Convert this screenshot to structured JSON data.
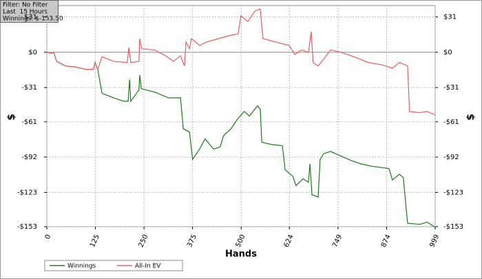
{
  "chart_data": {
    "type": "line",
    "info": [
      "Filter: No Filter",
      "Last  15 Hours",
      "Winnings: $-153.50"
    ],
    "xlabel": "Hands",
    "ylabel": "$",
    "y2label": "$",
    "xlim": [
      0,
      999
    ],
    "xticks": [
      0,
      125,
      250,
      375,
      500,
      624,
      749,
      874,
      999
    ],
    "ylim": [
      -153,
      41
    ],
    "yticks": [
      {
        "value": -153,
        "label": "-$153"
      },
      {
        "value": -123,
        "label": "-$123"
      },
      {
        "value": -92,
        "label": "-$92"
      },
      {
        "value": -61,
        "label": "-$61"
      },
      {
        "value": -31,
        "label": "-$31"
      },
      {
        "value": 0,
        "label": "$0"
      },
      {
        "value": 31,
        "label": "$31"
      }
    ],
    "y2lim": [
      -153,
      41
    ],
    "y2ticks": [
      {
        "value": -153,
        "label": "-$153"
      },
      {
        "value": -123,
        "label": "-$123"
      },
      {
        "value": -92,
        "label": "-$92"
      },
      {
        "value": -61,
        "label": "-$61"
      },
      {
        "value": -31,
        "label": "-$31"
      },
      {
        "value": 0,
        "label": "$0"
      },
      {
        "value": 31,
        "label": "$31"
      }
    ],
    "grid": true,
    "series": [
      {
        "name": "Winnings",
        "color": "#1a7a1a",
        "x": [
          0,
          11,
          18,
          25,
          48,
          74,
          101,
          120,
          124,
          131,
          142,
          172,
          198,
          209,
          213,
          216,
          237,
          239,
          243,
          278,
          313,
          344,
          351,
          367,
          375,
          393,
          407,
          429,
          446,
          455,
          474,
          492,
          508,
          521,
          542,
          549,
          553,
          579,
          606,
          613,
          633,
          641,
          659,
          673,
          677,
          682,
          698,
          703,
          712,
          730,
          756,
          783,
          809,
          836,
          880,
          889,
          907,
          917,
          928,
          960,
          978,
          999
        ],
        "values": [
          0,
          -1,
          0,
          -8,
          -12,
          -13,
          -15,
          -15,
          -9,
          -15,
          -36,
          -40,
          -43,
          -43,
          -24,
          -43,
          -33,
          -20,
          -32,
          -35,
          -40,
          -40,
          -67,
          -70,
          -94,
          -85,
          -76,
          -85,
          -83,
          -73,
          -67,
          -58,
          -52,
          -56,
          -47,
          -50,
          -79,
          -81,
          -82,
          -103,
          -109,
          -117,
          -111,
          -114,
          -98,
          -125,
          -127,
          -94,
          -89,
          -87,
          -91,
          -95,
          -98,
          -100,
          -102,
          -112,
          -107,
          -110,
          -150,
          -151,
          -149,
          -153.5
        ]
      },
      {
        "name": "All-In EV",
        "color": "#e06060",
        "x": [
          0,
          11,
          18,
          25,
          48,
          74,
          101,
          120,
          124,
          131,
          142,
          172,
          207,
          211,
          216,
          237,
          239,
          244,
          278,
          305,
          326,
          344,
          354,
          358,
          367,
          372,
          393,
          411,
          432,
          474,
          492,
          499,
          517,
          535,
          549,
          556,
          588,
          623,
          638,
          655,
          673,
          680,
          685,
          698,
          712,
          730,
          756,
          783,
          827,
          862,
          889,
          907,
          928,
          933,
          960,
          978,
          999
        ],
        "values": [
          0,
          -1,
          0,
          -8,
          -12,
          -13,
          -15,
          -15,
          -9,
          -15,
          -4,
          -8,
          -9,
          4,
          -9,
          -8,
          12,
          3,
          2,
          -3,
          -8,
          -3,
          -12,
          9,
          3,
          12,
          6,
          9,
          11,
          15,
          16,
          32,
          27,
          36,
          38,
          12,
          9,
          6,
          -2,
          2,
          0,
          18,
          -9,
          -12,
          -6,
          2,
          0,
          -3,
          -9,
          -11,
          -14,
          -9,
          -12,
          -52,
          -53,
          -52,
          -55
        ]
      }
    ]
  }
}
